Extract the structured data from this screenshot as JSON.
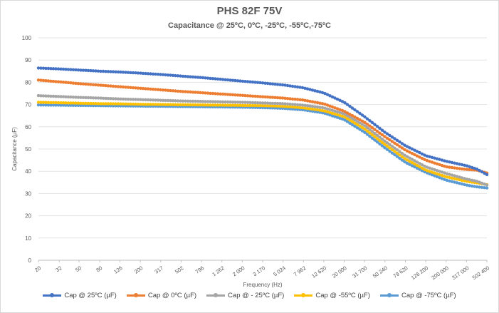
{
  "chart_data": {
    "type": "line",
    "title": "PHS 82F 75V",
    "subtitle": "Capacitance @ 25ºC, 0ºC, -25ºC, -55ºC,-75ºC",
    "xlabel": "Frequency (Hz)",
    "ylabel": "Capacitance (µF)",
    "x_scale": "log",
    "xlim": [
      20,
      502400
    ],
    "ylim": [
      0,
      100
    ],
    "y_ticks": [
      0,
      10,
      20,
      30,
      40,
      50,
      60,
      70,
      80,
      90,
      100
    ],
    "x_ticks": [
      {
        "value": 20,
        "label": "20"
      },
      {
        "value": 32,
        "label": "32"
      },
      {
        "value": 50,
        "label": "50"
      },
      {
        "value": 80,
        "label": "80"
      },
      {
        "value": 126,
        "label": "126"
      },
      {
        "value": 200,
        "label": "200"
      },
      {
        "value": 317,
        "label": "317"
      },
      {
        "value": 502,
        "label": "502"
      },
      {
        "value": 796,
        "label": "796"
      },
      {
        "value": 1262,
        "label": "1 262"
      },
      {
        "value": 2000,
        "label": "2 000"
      },
      {
        "value": 3170,
        "label": "3 170"
      },
      {
        "value": 5024,
        "label": "5 024"
      },
      {
        "value": 7962,
        "label": "7 962"
      },
      {
        "value": 12620,
        "label": "12 620"
      },
      {
        "value": 20000,
        "label": "20 000"
      },
      {
        "value": 31700,
        "label": "31 700"
      },
      {
        "value": 50240,
        "label": "50 240"
      },
      {
        "value": 79620,
        "label": "79 620"
      },
      {
        "value": 126200,
        "label": "126 200"
      },
      {
        "value": 200000,
        "label": "200 000"
      },
      {
        "value": 317000,
        "label": "317 000"
      },
      {
        "value": 502400,
        "label": "502 400"
      }
    ],
    "grid": "horizontal",
    "legend_position": "bottom",
    "series": [
      {
        "name": "Cap @ 25ºC (µF)",
        "color": "#4472c4",
        "points": [
          [
            20,
            86.4
          ],
          [
            32,
            86.0
          ],
          [
            50,
            85.5
          ],
          [
            80,
            85.0
          ],
          [
            126,
            84.6
          ],
          [
            200,
            84.1
          ],
          [
            317,
            83.5
          ],
          [
            502,
            82.8
          ],
          [
            796,
            82.1
          ],
          [
            1262,
            81.3
          ],
          [
            2000,
            80.5
          ],
          [
            3170,
            79.7
          ],
          [
            5024,
            78.8
          ],
          [
            7962,
            77.5
          ],
          [
            12620,
            75.2
          ],
          [
            20000,
            71.0
          ],
          [
            31700,
            64.5
          ],
          [
            50240,
            57.5
          ],
          [
            79620,
            51.5
          ],
          [
            126200,
            47.0
          ],
          [
            200000,
            44.5
          ],
          [
            317000,
            42.5
          ],
          [
            400000,
            41.0
          ],
          [
            502400,
            38.5
          ]
        ]
      },
      {
        "name": "Cap @ 0ºC (µF)",
        "color": "#ed7d31",
        "points": [
          [
            20,
            81.0
          ],
          [
            32,
            80.2
          ],
          [
            50,
            79.4
          ],
          [
            80,
            78.7
          ],
          [
            126,
            78.0
          ],
          [
            200,
            77.3
          ],
          [
            317,
            76.6
          ],
          [
            502,
            75.9
          ],
          [
            796,
            75.3
          ],
          [
            1262,
            74.7
          ],
          [
            2000,
            74.1
          ],
          [
            3170,
            73.5
          ],
          [
            5024,
            72.9
          ],
          [
            7962,
            72.0
          ],
          [
            12620,
            70.3
          ],
          [
            20000,
            67.0
          ],
          [
            31700,
            62.0
          ],
          [
            50240,
            55.5
          ],
          [
            79620,
            49.5
          ],
          [
            126200,
            45.0
          ],
          [
            200000,
            42.0
          ],
          [
            317000,
            40.8
          ],
          [
            400000,
            40.5
          ],
          [
            502400,
            39.2
          ]
        ]
      },
      {
        "name": "Cap @ - 25ºC (µF)",
        "color": "#a5a5a5",
        "points": [
          [
            20,
            74.0
          ],
          [
            32,
            73.6
          ],
          [
            50,
            73.2
          ],
          [
            80,
            72.9
          ],
          [
            126,
            72.5
          ],
          [
            200,
            72.2
          ],
          [
            317,
            71.9
          ],
          [
            502,
            71.6
          ],
          [
            796,
            71.4
          ],
          [
            1262,
            71.2
          ],
          [
            2000,
            71.0
          ],
          [
            3170,
            70.7
          ],
          [
            5024,
            70.4
          ],
          [
            7962,
            69.7
          ],
          [
            12620,
            68.5
          ],
          [
            20000,
            65.8
          ],
          [
            31700,
            60.5
          ],
          [
            50240,
            53.5
          ],
          [
            79620,
            47.0
          ],
          [
            126200,
            42.0
          ],
          [
            200000,
            39.0
          ],
          [
            317000,
            36.5
          ],
          [
            400000,
            35.5
          ],
          [
            502400,
            33.8
          ]
        ]
      },
      {
        "name": "Cap @ -55ºC (µF)",
        "color": "#ffc000",
        "points": [
          [
            20,
            71.0
          ],
          [
            32,
            70.8
          ],
          [
            50,
            70.6
          ],
          [
            80,
            70.4
          ],
          [
            126,
            70.3
          ],
          [
            200,
            70.1
          ],
          [
            317,
            70.0
          ],
          [
            502,
            69.9
          ],
          [
            796,
            69.8
          ],
          [
            1262,
            69.7
          ],
          [
            2000,
            69.6
          ],
          [
            3170,
            69.5
          ],
          [
            5024,
            69.2
          ],
          [
            7962,
            68.5
          ],
          [
            12620,
            67.2
          ],
          [
            20000,
            64.5
          ],
          [
            31700,
            59.0
          ],
          [
            50240,
            52.0
          ],
          [
            79620,
            45.5
          ],
          [
            126200,
            40.5
          ],
          [
            200000,
            37.5
          ],
          [
            317000,
            35.5
          ],
          [
            400000,
            34.8
          ],
          [
            502400,
            34.0
          ]
        ]
      },
      {
        "name": "Cap @ -75ºC (µF)",
        "color": "#5b9bd5",
        "points": [
          [
            20,
            69.8
          ],
          [
            32,
            69.7
          ],
          [
            50,
            69.6
          ],
          [
            80,
            69.5
          ],
          [
            126,
            69.4
          ],
          [
            200,
            69.3
          ],
          [
            317,
            69.2
          ],
          [
            502,
            69.1
          ],
          [
            796,
            69.0
          ],
          [
            1262,
            68.9
          ],
          [
            2000,
            68.8
          ],
          [
            3170,
            68.6
          ],
          [
            5024,
            68.3
          ],
          [
            7962,
            67.6
          ],
          [
            12620,
            66.2
          ],
          [
            20000,
            63.2
          ],
          [
            31700,
            57.5
          ],
          [
            50240,
            50.5
          ],
          [
            79620,
            44.0
          ],
          [
            126200,
            39.5
          ],
          [
            200000,
            36.0
          ],
          [
            317000,
            33.8
          ],
          [
            400000,
            33.0
          ],
          [
            502400,
            32.5
          ]
        ]
      }
    ]
  }
}
